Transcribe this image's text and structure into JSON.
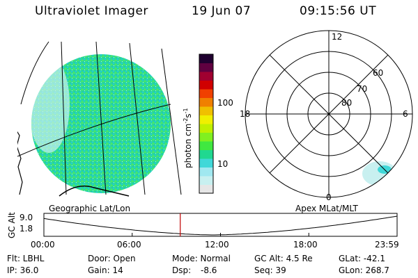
{
  "header": {
    "instrument": "Ultraviolet Imager",
    "date": "19 Jun 07",
    "time": "09:15:56 UT"
  },
  "left_panel": {
    "caption": "Geographic Lat/Lon"
  },
  "right_panel": {
    "caption": "Apex MLat/MLT",
    "mlt_labels": [
      "12",
      "18",
      "6",
      "0"
    ],
    "mlat_labels": [
      "60",
      "70",
      "80"
    ]
  },
  "colorbar": {
    "unit_label": "photon cm",
    "unit_exp1": "-2",
    "unit_mid": "s",
    "unit_exp2": "-1",
    "ticks": [
      "100",
      "10"
    ],
    "colors": [
      "#e6e6e6",
      "#c8f0f0",
      "#a0e8f0",
      "#40d8d8",
      "#20d890",
      "#40e840",
      "#80f020",
      "#c0f000",
      "#f0f000",
      "#f0c000",
      "#f08000",
      "#f04000",
      "#d00000",
      "#a00030",
      "#600040",
      "#200030"
    ]
  },
  "timeline": {
    "ylabel": "GC Alt",
    "yticks": [
      "9.0",
      "1.8"
    ],
    "xticks": [
      "00:00",
      "06:00",
      "12:00",
      "18:00",
      "23:59"
    ],
    "current_time": "09:15:56",
    "curve_color": "#000000",
    "marker_color": "#c00000"
  },
  "footer": {
    "flt": "Flt: LBHL",
    "ip": "IP: 36.0",
    "door": "Door: Open",
    "gain": "Gain: 14",
    "mode": "Mode: Normal",
    "dsp_label": "Dsp:",
    "dsp_value": "-8.6",
    "gc_alt": "GC Alt: 4.5 Re",
    "seq": "Seq: 39",
    "glat": "GLat: -42.1",
    "glon": "GLon: 268.7"
  }
}
